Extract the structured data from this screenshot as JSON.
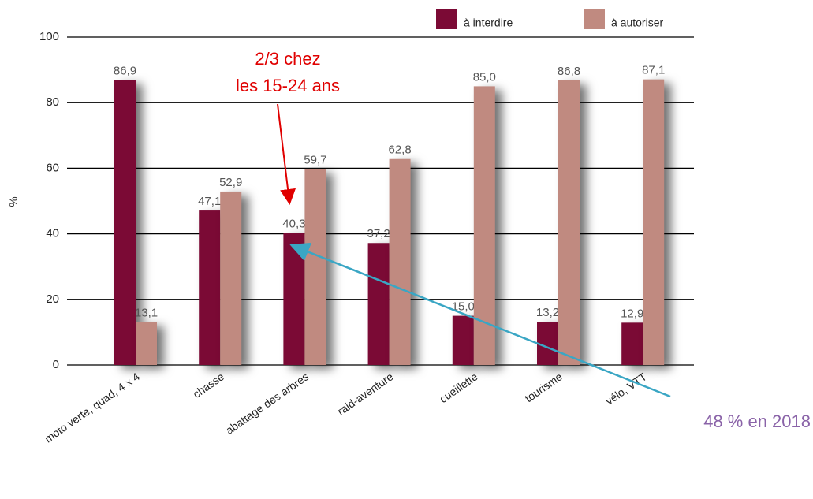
{
  "chart_data": {
    "type": "bar",
    "y_label": "%",
    "categories": [
      "moto verte, quad, 4 x 4",
      "chasse",
      "abattage des arbres",
      "raid-aventure",
      "cueillette",
      "tourisme",
      "vélo, VTT"
    ],
    "series": [
      {
        "name": "à interdire",
        "color": "#7b0a35",
        "values": [
          86.9,
          47.1,
          40.3,
          37.2,
          15.0,
          13.2,
          12.9
        ],
        "value_labels": [
          "86,9",
          "47,1",
          "40,3",
          "37,2",
          "15,0",
          "13,2",
          "12,9"
        ]
      },
      {
        "name": "à autoriser",
        "color": "#c08a80",
        "values": [
          13.1,
          52.9,
          59.7,
          62.8,
          85.0,
          86.8,
          87.1
        ],
        "value_labels": [
          "13,1",
          "52,9",
          "59,7",
          "62,8",
          "85,0",
          "86,8",
          "87,1"
        ]
      }
    ],
    "ylim": [
      0,
      100
    ],
    "yticks": [
      0,
      20,
      40,
      60,
      80,
      100
    ],
    "grid": true,
    "legend": "top-right",
    "annotations": [
      "2/3 chez",
      "les 15-24 ans",
      "48 % en 2018"
    ]
  }
}
